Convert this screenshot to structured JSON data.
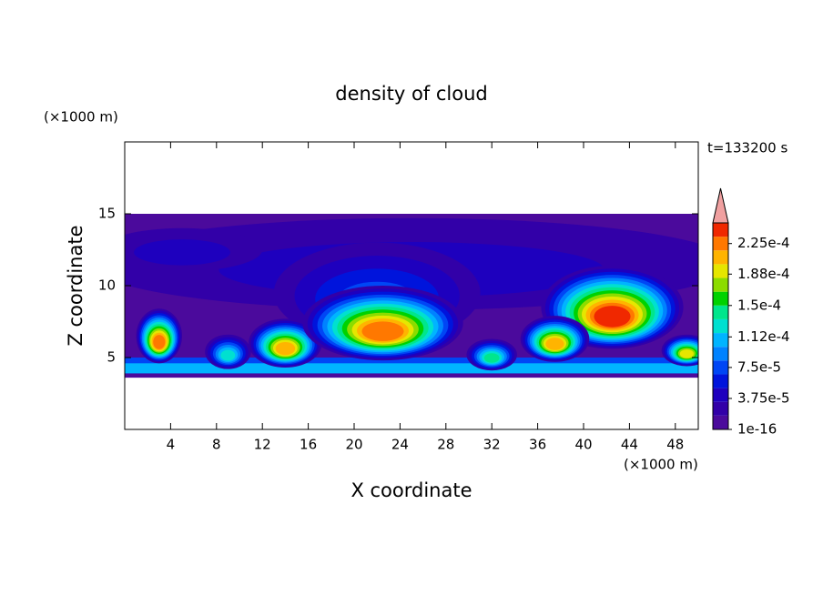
{
  "chart_data": {
    "type": "contour",
    "title": "density of cloud",
    "x_label": "X coordinate",
    "y_label": "Z coordinate",
    "x_unit": "(×1000 m)",
    "y_unit": "(×1000 m)",
    "time_label": "t=133200 s",
    "xlim": [
      0,
      50
    ],
    "xticks": [
      4,
      8,
      12,
      16,
      20,
      24,
      28,
      32,
      36,
      40,
      44,
      48
    ],
    "ylim": [
      0,
      20
    ],
    "yticks": [
      5,
      10,
      15
    ],
    "colorbar": {
      "clim": [
        1e-16,
        0.00025
      ],
      "ticks": [
        1e-16,
        {
          "value": 3.75e-05,
          "label": "3.75e-5"
        },
        {
          "value": 7.5e-05,
          "label": "7.5e-5"
        },
        {
          "value": 0.000112,
          "label": "1.12e-4"
        },
        {
          "value": 0.00015,
          "label": "1.5e-4"
        },
        {
          "value": 0.000188,
          "label": "1.88e-4"
        },
        {
          "value": 0.000225,
          "label": "2.25e-4"
        }
      ],
      "colors": [
        "#4b0a9c",
        "#3200a8",
        "#1e00be",
        "#0014dc",
        "#0046f5",
        "#0082ff",
        "#00b4ff",
        "#00e0d0",
        "#00e68c",
        "#00d200",
        "#8cdc00",
        "#e6e600",
        "#ffb400",
        "#ff7800",
        "#f02800"
      ],
      "extend_color": "#f0a0a0"
    }
  }
}
